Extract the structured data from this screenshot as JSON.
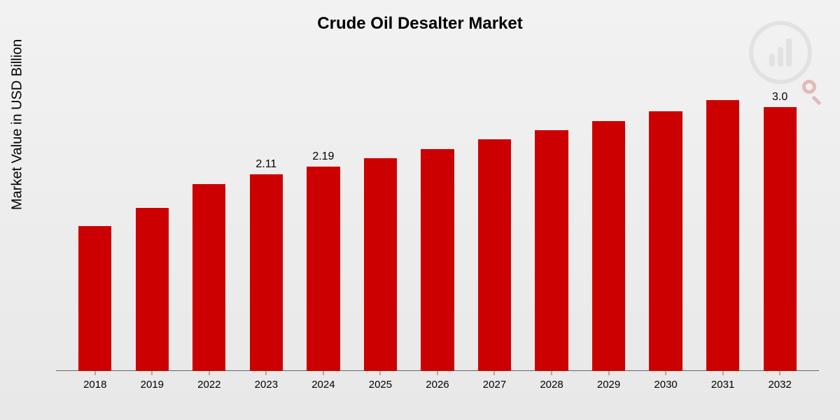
{
  "chart": {
    "type": "bar",
    "title": "Crude Oil Desalter Market",
    "title_fontsize": 24,
    "y_axis_label": "Market Value in USD Billion",
    "y_axis_fontsize": 20,
    "background_gradient_top": "#f2f2f2",
    "background_gradient_bottom": "#e8e8e8",
    "bar_color": "#cc0000",
    "axis_color": "#666666",
    "text_color": "#000000",
    "ylim_max": 3.0,
    "bar_width_pct": 58,
    "categories": [
      "2018",
      "2019",
      "2022",
      "2023",
      "2024",
      "2025",
      "2026",
      "2027",
      "2028",
      "2029",
      "2030",
      "2031",
      "2032"
    ],
    "values": [
      1.55,
      1.75,
      2.0,
      2.11,
      2.19,
      2.28,
      2.38,
      2.48,
      2.58,
      2.68,
      2.78,
      2.9,
      3.0
    ],
    "value_labels": [
      "",
      "",
      "",
      "2.11",
      "2.19",
      "",
      "",
      "",
      "",
      "",
      "",
      "",
      "3.0"
    ],
    "label_fontsize": 16,
    "x_tick_fontsize": 15,
    "watermark": {
      "border_color": "#d4d4d4",
      "accent_color": "#c04040",
      "opacity": 0.5
    }
  }
}
